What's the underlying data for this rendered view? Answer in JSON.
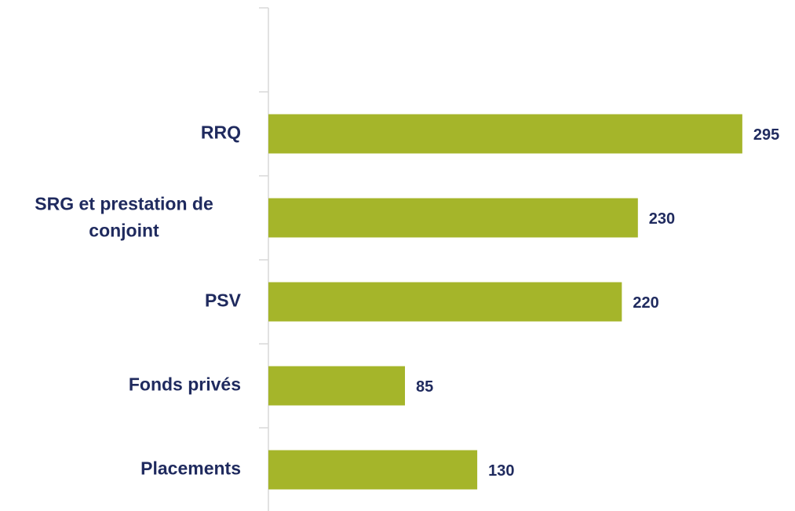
{
  "chart_data": {
    "type": "bar",
    "orientation": "horizontal",
    "categories": [
      null,
      "RRQ",
      "SRG et prestation de conjoint",
      "PSV",
      "Fonds privés",
      "Placements"
    ],
    "values": [
      null,
      295,
      230,
      220,
      85,
      130
    ],
    "color": "#a5b52a"
  }
}
